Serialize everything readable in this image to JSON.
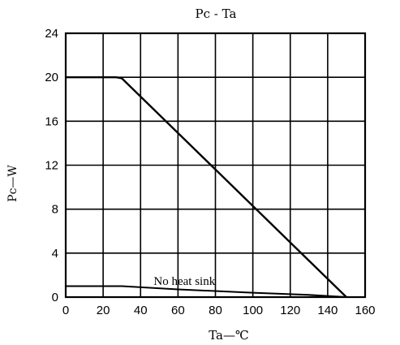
{
  "chart_data": {
    "type": "line",
    "title": "Pc - Ta",
    "xlabel": "Ta—℃",
    "ylabel": "Pc—W",
    "xlim": [
      0,
      160
    ],
    "ylim": [
      0,
      24
    ],
    "x_ticks": [
      "0",
      "20",
      "40",
      "60",
      "80",
      "100",
      "120",
      "140",
      "160"
    ],
    "y_ticks": [
      "0",
      "4",
      "8",
      "12",
      "16",
      "20",
      "24"
    ],
    "grid": true,
    "series": [
      {
        "name": "",
        "points": [
          [
            0,
            20
          ],
          [
            27,
            20
          ],
          [
            30,
            19.9
          ],
          [
            150,
            0
          ]
        ]
      },
      {
        "name": "",
        "points": [
          [
            0,
            1.0
          ],
          [
            30,
            1.0
          ],
          [
            60,
            0.7
          ],
          [
            100,
            0.4
          ],
          [
            130,
            0.2
          ],
          [
            150,
            0
          ]
        ]
      }
    ],
    "annotations": [
      {
        "text": "No heat sink",
        "x": 47,
        "y": 1.1
      }
    ]
  }
}
